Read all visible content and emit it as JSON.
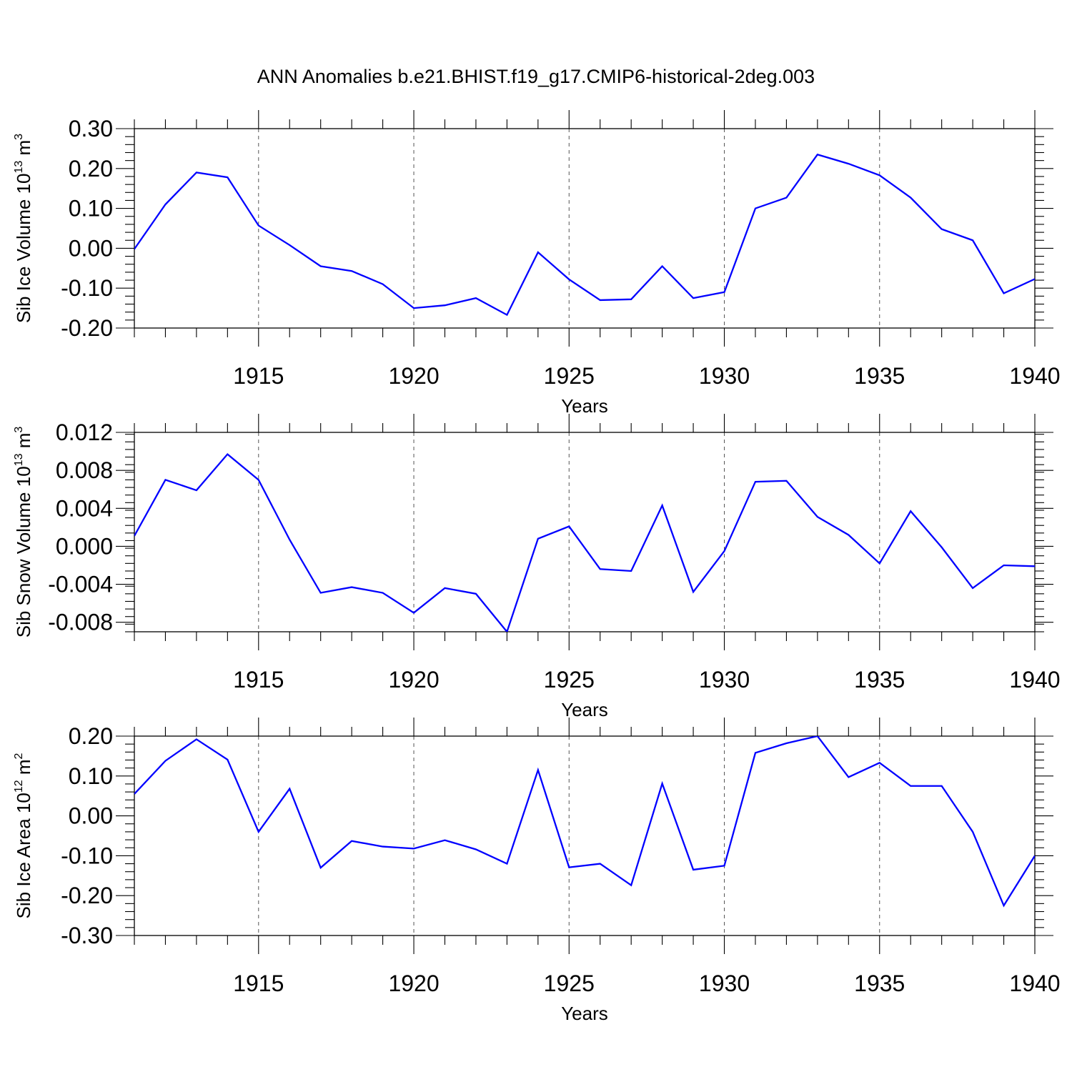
{
  "title": "ANN Anomalies b.e21.BHIST.f19_g17.CMIP6-historical-2deg.003",
  "colors": {
    "line": "#0000ff",
    "axis": "#000000",
    "grid": "#555555"
  },
  "chart_data": [
    {
      "type": "line",
      "ylabel_main": "Sib Ice Volume 10",
      "ylabel_exp": "13",
      "ylabel_unit": " m",
      "ylabel_unit_exp": "3",
      "xlabel": "Years",
      "xlim": [
        1911,
        1940
      ],
      "ylim": [
        -0.2,
        0.3
      ],
      "yticks": [
        -0.2,
        -0.1,
        0.0,
        0.1,
        0.2,
        0.3
      ],
      "ytick_labels": [
        "-0.20",
        "-0.10",
        "0.00",
        "0.10",
        "0.20",
        "0.30"
      ],
      "xticks": [
        1915,
        1920,
        1925,
        1930,
        1935,
        1940
      ],
      "xtick_labels": [
        "1915",
        "1920",
        "1925",
        "1930",
        "1935",
        "1940"
      ],
      "x": [
        1911,
        1912,
        1913,
        1914,
        1915,
        1916,
        1917,
        1918,
        1919,
        1920,
        1921,
        1922,
        1923,
        1924,
        1925,
        1926,
        1927,
        1928,
        1929,
        1930,
        1931,
        1932,
        1933,
        1934,
        1935,
        1936,
        1937,
        1938,
        1939,
        1940
      ],
      "values": [
        -0.002,
        0.11,
        0.19,
        0.178,
        0.057,
        0.008,
        -0.045,
        -0.057,
        -0.09,
        -0.15,
        -0.143,
        -0.125,
        -0.167,
        -0.01,
        -0.078,
        -0.13,
        -0.128,
        -0.045,
        -0.125,
        -0.11,
        0.1,
        0.127,
        0.235,
        0.212,
        0.183,
        0.127,
        0.048,
        0.02,
        -0.113,
        -0.077
      ]
    },
    {
      "type": "line",
      "ylabel_main": "Sib Snow Volume 10",
      "ylabel_exp": "13",
      "ylabel_unit": " m",
      "ylabel_unit_exp": "3",
      "xlabel": "Years",
      "xlim": [
        1911,
        1940
      ],
      "ylim": [
        -0.009,
        0.012
      ],
      "yticks": [
        -0.008,
        -0.004,
        0.0,
        0.004,
        0.008,
        0.012
      ],
      "ytick_labels": [
        "-0.008",
        "-0.004",
        "0.000",
        "0.004",
        "0.008",
        "0.012"
      ],
      "xticks": [
        1915,
        1920,
        1925,
        1930,
        1935,
        1940
      ],
      "xtick_labels": [
        "1915",
        "1920",
        "1925",
        "1930",
        "1935",
        "1940"
      ],
      "x": [
        1911,
        1912,
        1913,
        1914,
        1915,
        1916,
        1917,
        1918,
        1919,
        1920,
        1921,
        1922,
        1923,
        1924,
        1925,
        1926,
        1927,
        1928,
        1929,
        1930,
        1931,
        1932,
        1933,
        1934,
        1935,
        1936,
        1937,
        1938,
        1939,
        1940
      ],
      "values": [
        0.0011,
        0.007,
        0.0059,
        0.0097,
        0.007,
        0.0007,
        -0.0049,
        -0.0043,
        -0.0049,
        -0.007,
        -0.0044,
        -0.005,
        -0.009,
        0.0008,
        0.0021,
        -0.0024,
        -0.0026,
        0.0043,
        -0.0048,
        -0.0005,
        0.0068,
        0.0069,
        0.0031,
        0.0012,
        -0.0018,
        0.0037,
        -0.0001,
        -0.0044,
        -0.002,
        -0.0021
      ]
    },
    {
      "type": "line",
      "ylabel_main": "Sib Ice Area 10",
      "ylabel_exp": "12",
      "ylabel_unit": " m",
      "ylabel_unit_exp": "2",
      "xlabel": "Years",
      "xlim": [
        1911,
        1940
      ],
      "ylim": [
        -0.3,
        0.2
      ],
      "yticks": [
        -0.3,
        -0.2,
        -0.1,
        0.0,
        0.1,
        0.2
      ],
      "ytick_labels": [
        "-0.30",
        "-0.20",
        "-0.10",
        "0.00",
        "0.10",
        "0.20"
      ],
      "xticks": [
        1915,
        1920,
        1925,
        1930,
        1935,
        1940
      ],
      "xtick_labels": [
        "1915",
        "1920",
        "1925",
        "1930",
        "1935",
        "1940"
      ],
      "x": [
        1911,
        1912,
        1913,
        1914,
        1915,
        1916,
        1917,
        1918,
        1919,
        1920,
        1921,
        1922,
        1923,
        1924,
        1925,
        1926,
        1927,
        1928,
        1929,
        1930,
        1931,
        1932,
        1933,
        1934,
        1935,
        1936,
        1937,
        1938,
        1939,
        1940
      ],
      "values": [
        0.055,
        0.138,
        0.192,
        0.141,
        -0.04,
        0.068,
        -0.13,
        -0.063,
        -0.077,
        -0.082,
        -0.061,
        -0.084,
        -0.12,
        0.115,
        -0.129,
        -0.12,
        -0.174,
        0.081,
        -0.135,
        -0.125,
        0.158,
        0.182,
        0.2,
        0.097,
        0.133,
        0.075,
        0.075,
        -0.04,
        -0.225,
        -0.1
      ]
    }
  ]
}
